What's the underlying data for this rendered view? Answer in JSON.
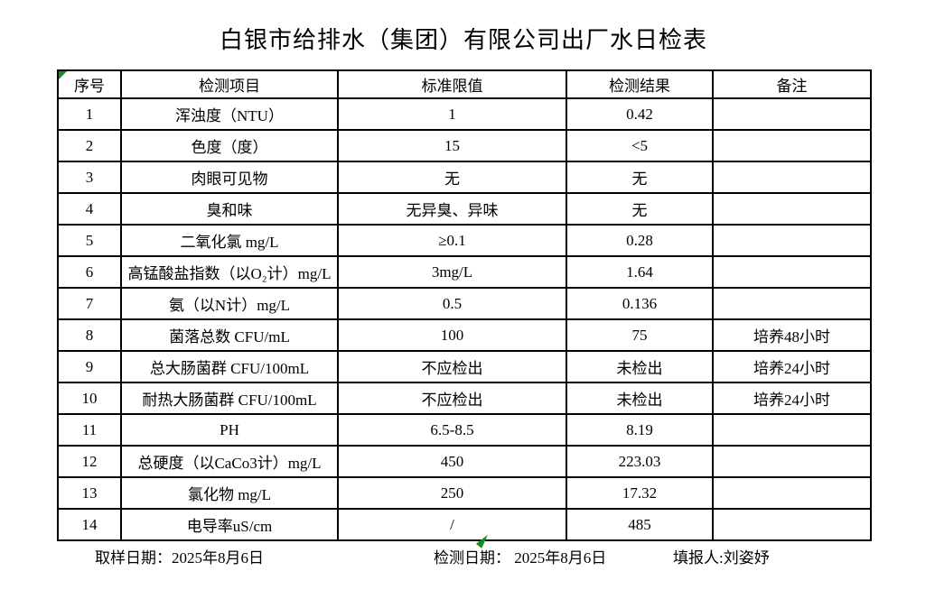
{
  "title": "白银市给排水（集团）有限公司出厂水日检表",
  "table": {
    "headers": [
      "序号",
      "检测项目",
      "标准限值",
      "检测结果",
      "备注"
    ],
    "rows": [
      [
        "1",
        "浑浊度（NTU）",
        "1",
        "0.42",
        ""
      ],
      [
        "2",
        "色度（度）",
        "15",
        "<5",
        ""
      ],
      [
        "3",
        "肉眼可见物",
        "无",
        "无",
        ""
      ],
      [
        "4",
        "臭和味",
        "无异臭、异味",
        "无",
        ""
      ],
      [
        "5",
        "二氧化氯 mg/L",
        "≥0.1",
        "0.28",
        ""
      ],
      [
        "6",
        "高锰酸盐指数（以O₂计）mg/L",
        "3mg/L",
        "1.64",
        ""
      ],
      [
        "7",
        "氨（以N计）mg/L",
        "0.5",
        "0.136",
        ""
      ],
      [
        "8",
        "菌落总数 CFU/mL",
        "100",
        "75",
        "培养48小时"
      ],
      [
        "9",
        "总大肠菌群 CFU/100mL",
        "不应检出",
        "未检出",
        "培养24小时"
      ],
      [
        "10",
        "耐热大肠菌群 CFU/100mL",
        "不应检出",
        "未检出",
        "培养24小时"
      ],
      [
        "11",
        "PH",
        "6.5-8.5",
        "8.19",
        ""
      ],
      [
        "12",
        "总硬度（以CaCo3计）mg/L",
        "450",
        "223.03",
        ""
      ],
      [
        "13",
        "氯化物 mg/L",
        "250",
        "17.32",
        ""
      ],
      [
        "14",
        "电导率uS/cm",
        "/",
        "485",
        ""
      ]
    ]
  },
  "footer": {
    "sampling_date_label": "取样日期：",
    "sampling_date": "2025年8月6日",
    "test_date_label": "检测日期：",
    "test_date": "2025年8月6日",
    "reporter_label": "填报人:",
    "reporter": "刘姿妤"
  }
}
